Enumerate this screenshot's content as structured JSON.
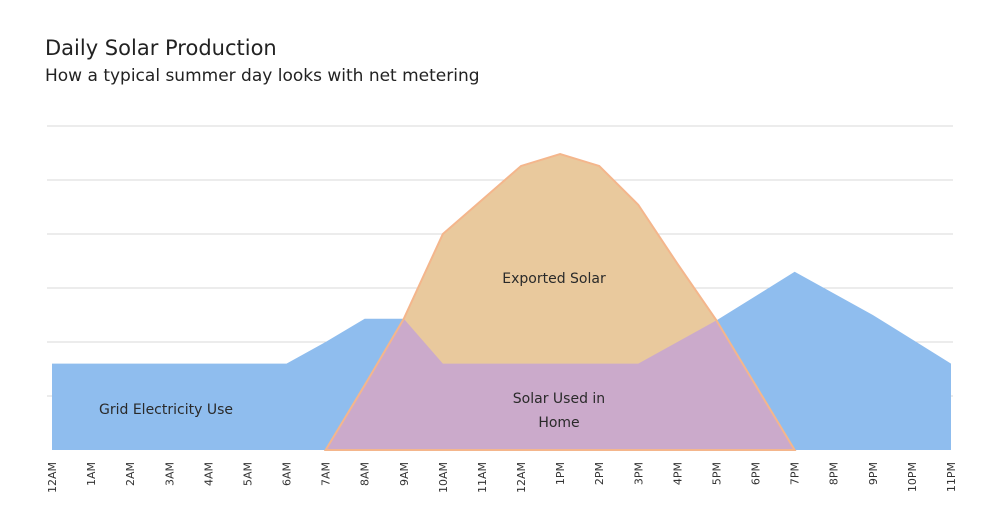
{
  "chart_data": {
    "type": "area",
    "title": "Daily Solar Production",
    "subtitle": "How a typical summer day looks with net metering",
    "xlabel": "",
    "ylabel": "",
    "categories": [
      "12AM",
      "1AM",
      "2AM",
      "3AM",
      "4AM",
      "5AM",
      "6AM",
      "7AM",
      "8AM",
      "9AM",
      "10AM",
      "11AM",
      "12AM",
      "1PM",
      "2PM",
      "3PM",
      "4PM",
      "5PM",
      "6PM",
      "7PM",
      "8PM",
      "9PM",
      "10PM",
      "11PM"
    ],
    "ylim": [
      0,
      6
    ],
    "grid": true,
    "series": [
      {
        "key": "usage",
        "color": "#8fbdee",
        "values": [
          1.6,
          1.6,
          1.6,
          1.6,
          1.6,
          1.6,
          1.6,
          2.0,
          2.43,
          2.43,
          1.6,
          1.6,
          1.6,
          1.6,
          1.6,
          1.6,
          2.0,
          2.4,
          2.85,
          3.3,
          2.9,
          2.5,
          2.05,
          1.6
        ]
      },
      {
        "key": "solar",
        "color": "#e9c99d",
        "stroke": "#f4b68c",
        "values": [
          0,
          0,
          0,
          0,
          0,
          0,
          0,
          0,
          1.2,
          2.43,
          4.0,
          4.63,
          5.26,
          5.48,
          5.26,
          4.54,
          3.45,
          2.4,
          1.2,
          0,
          0,
          0,
          0,
          0
        ]
      }
    ],
    "overlap_color": "#cbaacb",
    "annotations": {
      "grid": "Grid Electricity Use",
      "exported": "Exported Solar",
      "used_line1": "Solar Used in",
      "used_line2": "Home"
    }
  }
}
